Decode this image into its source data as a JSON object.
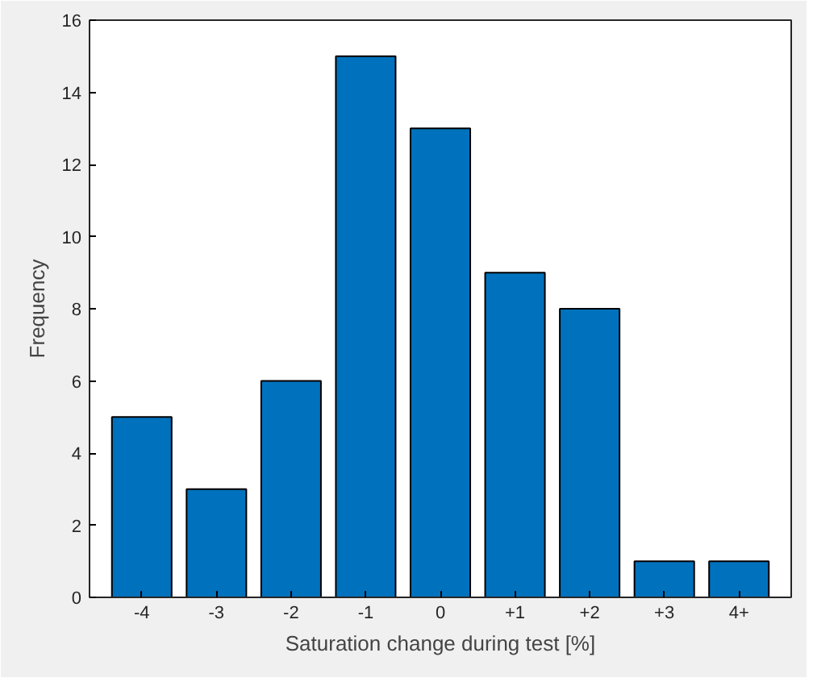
{
  "chart_data": {
    "type": "bar",
    "xlabel": "Saturation change during test [%]",
    "ylabel": "Frequency",
    "categories": [
      "-4",
      "-3",
      "-2",
      "-1",
      "0",
      "+1",
      "+2",
      "+3",
      "4+"
    ],
    "values": [
      5,
      3,
      6,
      15,
      13,
      9,
      8,
      1,
      1
    ],
    "color": "#0072bd",
    "ylim": [
      0,
      16
    ],
    "yticks": [
      0,
      2,
      4,
      6,
      8,
      10,
      12,
      14,
      16
    ]
  }
}
